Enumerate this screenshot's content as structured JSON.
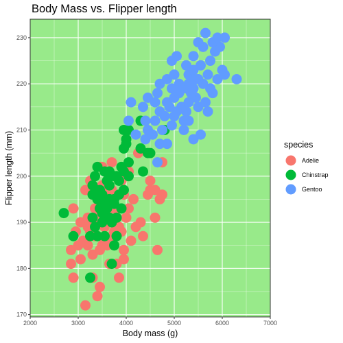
{
  "chart_data": {
    "type": "scatter",
    "title": "Body Mass vs. Flipper length",
    "xlabel": "Body mass (g)",
    "ylabel": "Flipper length (mm)",
    "xlim": [
      2000,
      7000
    ],
    "ylim": [
      169.5,
      234
    ],
    "xticks": [
      2000,
      3000,
      4000,
      5000,
      6000,
      7000
    ],
    "yticks": [
      170,
      180,
      190,
      200,
      210,
      220,
      230
    ],
    "grid": true,
    "panel_background": "#98ea8a",
    "legend": {
      "title": "species",
      "position": "right"
    },
    "series": [
      {
        "name": "Adelie",
        "color": "#f8766d",
        "points": [
          [
            3150,
            172
          ],
          [
            3400,
            174
          ],
          [
            3450,
            176
          ],
          [
            2900,
            178
          ],
          [
            3300,
            178
          ],
          [
            3850,
            178
          ],
          [
            2850,
            181
          ],
          [
            3650,
            181
          ],
          [
            3800,
            181
          ],
          [
            2850,
            184
          ],
          [
            3950,
            184
          ],
          [
            4650,
            184
          ],
          [
            3000,
            185
          ],
          [
            3200,
            185
          ],
          [
            3600,
            185
          ],
          [
            4100,
            186
          ],
          [
            3350,
            187
          ],
          [
            4350,
            187
          ],
          [
            2950,
            188
          ],
          [
            3250,
            188
          ],
          [
            3900,
            188
          ],
          [
            4200,
            189
          ],
          [
            3550,
            189
          ],
          [
            3700,
            190
          ],
          [
            3050,
            190
          ],
          [
            4300,
            190
          ],
          [
            3800,
            191
          ],
          [
            4600,
            191
          ],
          [
            3400,
            192
          ],
          [
            3350,
            193
          ],
          [
            2900,
            193
          ],
          [
            4050,
            193
          ],
          [
            4700,
            195
          ],
          [
            3450,
            195
          ],
          [
            3600,
            196
          ],
          [
            4450,
            196
          ],
          [
            4750,
            196
          ],
          [
            3700,
            197
          ],
          [
            4600,
            197
          ],
          [
            3150,
            197
          ],
          [
            3500,
            198
          ],
          [
            3250,
            199
          ],
          [
            4500,
            199
          ],
          [
            3900,
            199
          ],
          [
            3900,
            200
          ],
          [
            4050,
            201
          ],
          [
            3500,
            202
          ],
          [
            3450,
            202
          ],
          [
            3700,
            203
          ],
          [
            4750,
            203
          ],
          [
            4250,
            205
          ],
          [
            3600,
            194
          ],
          [
            3800,
            193
          ],
          [
            3350,
            190
          ],
          [
            3550,
            186
          ],
          [
            3700,
            187
          ],
          [
            3950,
            182
          ],
          [
            3300,
            183
          ],
          [
            3100,
            186
          ],
          [
            3450,
            184
          ],
          [
            3750,
            193
          ],
          [
            3200,
            191
          ],
          [
            3600,
            192
          ],
          [
            3850,
            189
          ],
          [
            4000,
            191
          ],
          [
            3400,
            187
          ],
          [
            3050,
            182
          ],
          [
            3700,
            195
          ],
          [
            3500,
            185
          ],
          [
            4150,
            195
          ],
          [
            3550,
            197
          ],
          [
            3300,
            196
          ],
          [
            3950,
            196
          ],
          [
            3650,
            200
          ],
          [
            3200,
            189
          ],
          [
            3750,
            188
          ],
          [
            3450,
            190
          ],
          [
            4500,
            197
          ]
        ]
      },
      {
        "name": "Chinstrap",
        "color": "#00ba38",
        "points": [
          [
            2700,
            192
          ],
          [
            3250,
            178
          ],
          [
            3700,
            181
          ],
          [
            3750,
            185
          ],
          [
            3250,
            187
          ],
          [
            3400,
            187
          ],
          [
            3800,
            187
          ],
          [
            2900,
            187
          ],
          [
            3550,
            187
          ],
          [
            3350,
            189
          ],
          [
            3500,
            190
          ],
          [
            3700,
            190
          ],
          [
            3300,
            191
          ],
          [
            3650,
            191
          ],
          [
            3800,
            191
          ],
          [
            3450,
            193
          ],
          [
            3900,
            193
          ],
          [
            3550,
            194
          ],
          [
            3400,
            195
          ],
          [
            3650,
            195
          ],
          [
            3750,
            195
          ],
          [
            3300,
            196
          ],
          [
            3850,
            196
          ],
          [
            3500,
            196
          ],
          [
            3950,
            197
          ],
          [
            3450,
            197
          ],
          [
            3650,
            198
          ],
          [
            3300,
            198
          ],
          [
            3850,
            199
          ],
          [
            3600,
            199
          ],
          [
            3800,
            200
          ],
          [
            4050,
            200
          ],
          [
            3350,
            200
          ],
          [
            3750,
            200
          ],
          [
            3950,
            201
          ],
          [
            4350,
            201
          ],
          [
            3550,
            201
          ],
          [
            3650,
            201
          ],
          [
            3400,
            202
          ],
          [
            3900,
            202
          ],
          [
            4050,
            203
          ],
          [
            4450,
            205
          ],
          [
            4500,
            205
          ],
          [
            4300,
            206
          ],
          [
            3950,
            206
          ],
          [
            4000,
            207
          ],
          [
            4000,
            208
          ],
          [
            3950,
            210
          ],
          [
            4050,
            210
          ],
          [
            4800,
            210
          ],
          [
            4300,
            212
          ],
          [
            3500,
            192
          ],
          [
            3600,
            193
          ],
          [
            3750,
            194
          ]
        ]
      },
      {
        "name": "Gentoo",
        "color": "#619cff",
        "points": [
          [
            4650,
            203
          ],
          [
            4700,
            207
          ],
          [
            4850,
            207
          ],
          [
            5400,
            208
          ],
          [
            5550,
            209
          ],
          [
            4400,
            208
          ],
          [
            4200,
            209
          ],
          [
            4550,
            209
          ],
          [
            4750,
            210
          ],
          [
            4950,
            211
          ],
          [
            5300,
            212
          ],
          [
            5200,
            212
          ],
          [
            4050,
            212
          ],
          [
            4400,
            212
          ],
          [
            4800,
            213
          ],
          [
            5250,
            214
          ],
          [
            5700,
            214
          ],
          [
            4700,
            214
          ],
          [
            4350,
            215
          ],
          [
            5150,
            215
          ],
          [
            5500,
            215
          ],
          [
            4100,
            216
          ],
          [
            4600,
            216
          ],
          [
            5300,
            216
          ],
          [
            5650,
            216
          ],
          [
            4450,
            217
          ],
          [
            5000,
            217
          ],
          [
            5100,
            218
          ],
          [
            5800,
            218
          ],
          [
            4950,
            219
          ],
          [
            5400,
            219
          ],
          [
            5300,
            220
          ],
          [
            5600,
            220
          ],
          [
            4700,
            220
          ],
          [
            5500,
            221
          ],
          [
            5900,
            221
          ],
          [
            4850,
            221
          ],
          [
            5000,
            222
          ],
          [
            5300,
            222
          ],
          [
            5700,
            222
          ],
          [
            6300,
            221
          ],
          [
            5400,
            223
          ],
          [
            5250,
            224
          ],
          [
            5550,
            224
          ],
          [
            6050,
            222
          ],
          [
            4950,
            225
          ],
          [
            5750,
            225
          ],
          [
            5050,
            226
          ],
          [
            5400,
            226
          ],
          [
            5850,
            227
          ],
          [
            5600,
            228
          ],
          [
            5950,
            228
          ],
          [
            5500,
            229
          ],
          [
            5800,
            229
          ],
          [
            6050,
            230
          ],
          [
            5650,
            231
          ],
          [
            5900,
            230
          ],
          [
            5250,
            219
          ],
          [
            4650,
            218
          ],
          [
            5100,
            220
          ],
          [
            5450,
            217
          ],
          [
            4900,
            215
          ],
          [
            5200,
            210
          ],
          [
            4600,
            212
          ],
          [
            5000,
            213
          ],
          [
            5350,
            218
          ],
          [
            5750,
            219
          ],
          [
            4850,
            216
          ],
          [
            6000,
            223
          ],
          [
            4450,
            210
          ],
          [
            5050,
            214
          ],
          [
            5450,
            221
          ]
        ]
      }
    ]
  }
}
